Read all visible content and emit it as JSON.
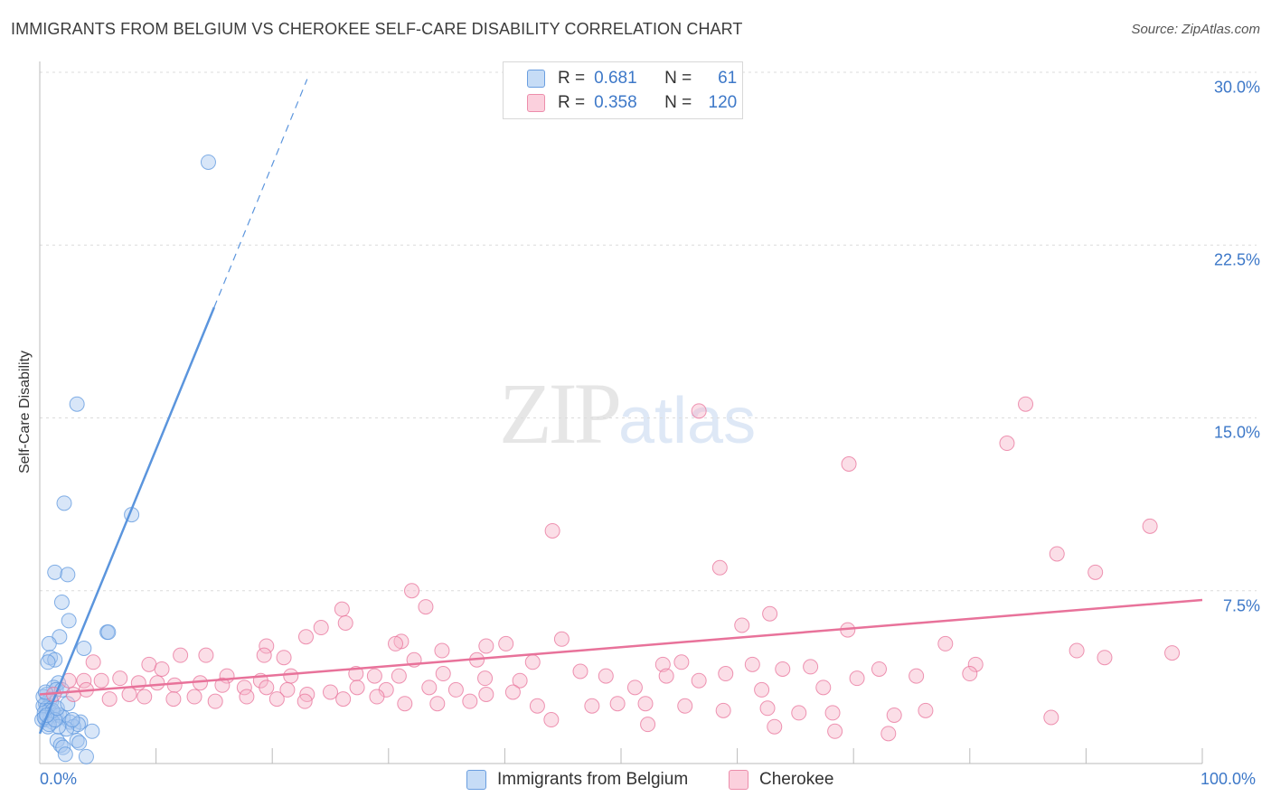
{
  "header": {
    "title": "IMMIGRANTS FROM BELGIUM VS CHEROKEE SELF-CARE DISABILITY CORRELATION CHART",
    "source": "Source: ZipAtlas.com"
  },
  "watermark": {
    "zip": "ZIP",
    "atlas": "atlas"
  },
  "legend": {
    "rows": [
      {
        "r_label": "R =",
        "r_value": "0.681",
        "n_label": "N =",
        "n_value": "61",
        "color": "#a8c8f0"
      },
      {
        "r_label": "R =",
        "r_value": "0.358",
        "n_label": "N =",
        "n_value": "120",
        "color": "#f6b6c9"
      }
    ]
  },
  "bottom_legend": {
    "belgium": "Immigrants from Belgium",
    "cherokee": "Cherokee"
  },
  "chart_data": {
    "type": "scatter",
    "title": "IMMIGRANTS FROM BELGIUM VS CHEROKEE SELF-CARE DISABILITY CORRELATION CHART",
    "xlabel": "",
    "ylabel": "Self-Care Disability",
    "xlim": [
      0,
      100
    ],
    "ylim": [
      0,
      30
    ],
    "x_tick_labels": [
      "0.0%",
      "100.0%"
    ],
    "y_ticks": [
      7.5,
      15.0,
      22.5,
      30.0
    ],
    "y_tick_labels": [
      "7.5%",
      "15.0%",
      "22.5%",
      "30.0%"
    ],
    "grid": true,
    "legend_position": "top-center",
    "series": [
      {
        "name": "Immigrants from Belgium",
        "color": "#5b95dd",
        "fill": "#a8c8f0",
        "r": 0.681,
        "n": 61,
        "trend": {
          "x0": 0.0,
          "y0": 1.3,
          "x1": 15.0,
          "y1": 19.8,
          "dash_to_x": 23.0,
          "dash_to_y": 29.7
        },
        "points": [
          [
            14.5,
            26.1
          ],
          [
            3.2,
            15.6
          ],
          [
            2.1,
            11.3
          ],
          [
            7.9,
            10.8
          ],
          [
            1.3,
            8.3
          ],
          [
            2.4,
            8.2
          ],
          [
            1.9,
            7.0
          ],
          [
            2.5,
            6.2
          ],
          [
            5.8,
            5.7
          ],
          [
            5.9,
            5.7
          ],
          [
            1.7,
            5.5
          ],
          [
            0.8,
            5.2
          ],
          [
            3.8,
            5.0
          ],
          [
            0.9,
            4.6
          ],
          [
            1.3,
            4.5
          ],
          [
            0.7,
            4.4
          ],
          [
            1.6,
            3.5
          ],
          [
            1.2,
            3.3
          ],
          [
            1.4,
            3.2
          ],
          [
            0.6,
            3.0
          ],
          [
            0.9,
            2.8
          ],
          [
            0.5,
            2.6
          ],
          [
            1.0,
            2.7
          ],
          [
            0.3,
            2.5
          ],
          [
            0.6,
            2.4
          ],
          [
            0.8,
            2.3
          ],
          [
            0.4,
            2.2
          ],
          [
            1.2,
            2.2
          ],
          [
            1.4,
            2.1
          ],
          [
            0.9,
            2.0
          ],
          [
            1.7,
            2.1
          ],
          [
            2.0,
            2.0
          ],
          [
            0.5,
            1.9
          ],
          [
            1.1,
            1.8
          ],
          [
            2.6,
            1.8
          ],
          [
            3.5,
            1.8
          ],
          [
            2.9,
            1.6
          ],
          [
            3.3,
            1.7
          ],
          [
            2.3,
            1.5
          ],
          [
            4.5,
            1.4
          ],
          [
            1.5,
            1.0
          ],
          [
            1.8,
            0.8
          ],
          [
            2.0,
            0.7
          ],
          [
            3.2,
            1.0
          ],
          [
            3.4,
            0.9
          ],
          [
            2.2,
            0.4
          ],
          [
            4.0,
            0.3
          ],
          [
            0.7,
            1.6
          ],
          [
            1.6,
            1.6
          ],
          [
            0.3,
            2.9
          ],
          [
            0.2,
            1.9
          ],
          [
            0.5,
            3.1
          ],
          [
            1.9,
            3.2
          ],
          [
            1.1,
            2.3
          ],
          [
            0.4,
            2.0
          ],
          [
            2.8,
            1.9
          ],
          [
            0.8,
            1.7
          ],
          [
            1.3,
            1.9
          ],
          [
            0.6,
            2.1
          ],
          [
            1.5,
            2.4
          ],
          [
            2.4,
            2.6
          ]
        ]
      },
      {
        "name": "Cherokee",
        "color": "#e8729a",
        "fill": "#f6b6c9",
        "r": 0.358,
        "n": 120,
        "trend": {
          "x0": 0.0,
          "y0": 3.0,
          "x1": 100.0,
          "y1": 7.1
        },
        "points": [
          [
            84.8,
            15.6
          ],
          [
            56.7,
            15.3
          ],
          [
            83.2,
            13.9
          ],
          [
            69.6,
            13.0
          ],
          [
            95.5,
            10.3
          ],
          [
            44.1,
            10.1
          ],
          [
            87.5,
            9.1
          ],
          [
            90.8,
            8.3
          ],
          [
            58.5,
            8.5
          ],
          [
            32.0,
            7.5
          ],
          [
            33.2,
            6.8
          ],
          [
            26.0,
            6.7
          ],
          [
            62.8,
            6.5
          ],
          [
            26.3,
            6.1
          ],
          [
            60.4,
            6.0
          ],
          [
            24.2,
            5.9
          ],
          [
            69.5,
            5.8
          ],
          [
            22.9,
            5.5
          ],
          [
            31.1,
            5.3
          ],
          [
            44.9,
            5.4
          ],
          [
            30.6,
            5.2
          ],
          [
            38.4,
            5.1
          ],
          [
            40.1,
            5.2
          ],
          [
            19.5,
            5.1
          ],
          [
            34.6,
            4.9
          ],
          [
            77.9,
            5.2
          ],
          [
            89.2,
            4.9
          ],
          [
            97.4,
            4.8
          ],
          [
            12.1,
            4.7
          ],
          [
            14.3,
            4.7
          ],
          [
            19.3,
            4.7
          ],
          [
            21.0,
            4.6
          ],
          [
            32.2,
            4.5
          ],
          [
            37.6,
            4.5
          ],
          [
            42.4,
            4.4
          ],
          [
            53.6,
            4.3
          ],
          [
            55.2,
            4.4
          ],
          [
            61.3,
            4.3
          ],
          [
            63.9,
            4.1
          ],
          [
            66.3,
            4.2
          ],
          [
            72.2,
            4.1
          ],
          [
            80.5,
            4.3
          ],
          [
            91.6,
            4.6
          ],
          [
            4.6,
            4.4
          ],
          [
            9.4,
            4.3
          ],
          [
            10.5,
            4.1
          ],
          [
            16.1,
            3.8
          ],
          [
            19.0,
            3.6
          ],
          [
            21.6,
            3.8
          ],
          [
            27.2,
            3.9
          ],
          [
            28.8,
            3.8
          ],
          [
            30.9,
            3.8
          ],
          [
            34.7,
            3.9
          ],
          [
            38.3,
            3.7
          ],
          [
            41.3,
            3.6
          ],
          [
            46.5,
            4.0
          ],
          [
            48.7,
            3.8
          ],
          [
            51.2,
            3.3
          ],
          [
            53.9,
            3.8
          ],
          [
            56.7,
            3.6
          ],
          [
            59.0,
            3.9
          ],
          [
            62.1,
            3.2
          ],
          [
            67.4,
            3.3
          ],
          [
            70.3,
            3.7
          ],
          [
            75.4,
            3.8
          ],
          [
            80.0,
            3.9
          ],
          [
            2.5,
            3.6
          ],
          [
            3.8,
            3.6
          ],
          [
            5.3,
            3.6
          ],
          [
            6.9,
            3.7
          ],
          [
            8.5,
            3.5
          ],
          [
            10.1,
            3.5
          ],
          [
            11.6,
            3.4
          ],
          [
            13.8,
            3.5
          ],
          [
            15.7,
            3.4
          ],
          [
            17.6,
            3.3
          ],
          [
            19.5,
            3.3
          ],
          [
            21.3,
            3.2
          ],
          [
            23.0,
            3.0
          ],
          [
            25.0,
            3.1
          ],
          [
            27.3,
            3.3
          ],
          [
            29.8,
            3.2
          ],
          [
            33.5,
            3.3
          ],
          [
            35.8,
            3.2
          ],
          [
            38.4,
            3.0
          ],
          [
            40.7,
            3.1
          ],
          [
            1.2,
            3.0
          ],
          [
            2.9,
            3.0
          ],
          [
            4.0,
            3.2
          ],
          [
            6.0,
            2.8
          ],
          [
            7.7,
            3.0
          ],
          [
            9.0,
            2.9
          ],
          [
            11.5,
            2.8
          ],
          [
            13.3,
            2.9
          ],
          [
            15.1,
            2.7
          ],
          [
            17.8,
            2.9
          ],
          [
            20.4,
            2.8
          ],
          [
            22.8,
            2.7
          ],
          [
            26.1,
            2.8
          ],
          [
            29.0,
            2.9
          ],
          [
            31.4,
            2.6
          ],
          [
            34.2,
            2.6
          ],
          [
            37.0,
            2.7
          ],
          [
            42.8,
            2.5
          ],
          [
            47.5,
            2.5
          ],
          [
            49.7,
            2.6
          ],
          [
            52.1,
            2.6
          ],
          [
            55.5,
            2.5
          ],
          [
            58.8,
            2.3
          ],
          [
            62.6,
            2.4
          ],
          [
            65.3,
            2.2
          ],
          [
            68.2,
            2.2
          ],
          [
            73.5,
            2.1
          ],
          [
            76.2,
            2.3
          ],
          [
            87.0,
            2.0
          ],
          [
            44.0,
            1.9
          ],
          [
            52.3,
            1.7
          ],
          [
            63.2,
            1.6
          ],
          [
            68.4,
            1.4
          ],
          [
            73.0,
            1.3
          ]
        ]
      }
    ]
  }
}
